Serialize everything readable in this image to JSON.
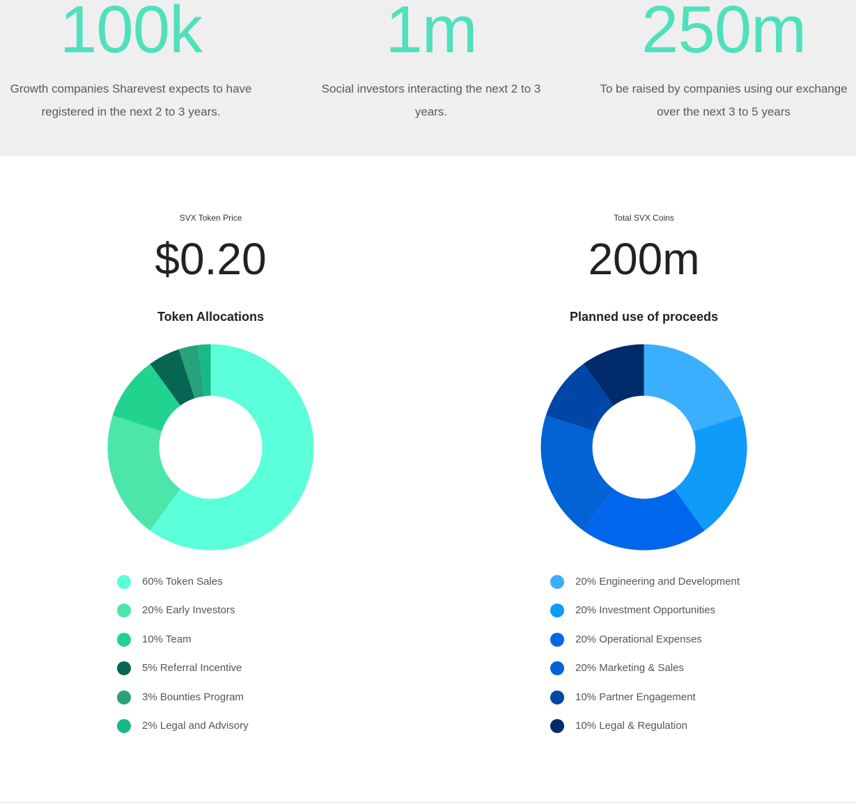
{
  "stats": [
    {
      "value": "100k",
      "desc_line1": "Growth companies Sharevest expects to have",
      "desc_line2": "registered in the next 2 to 3 years."
    },
    {
      "value": "1m",
      "desc_line1": "Social investors interacting the next 2 to 3",
      "desc_line2": "years."
    },
    {
      "value": "250m",
      "desc_line1": "To be raised by companies using our exchange",
      "desc_line2": "over the next 3 to 5 years"
    }
  ],
  "token_price": {
    "label": "SVX Token Price",
    "value": "$0.20"
  },
  "total_coins": {
    "label": "Total SVX Coins",
    "value": "200m"
  },
  "chart_data": [
    {
      "type": "pie",
      "title": "Token Allocations",
      "categories": [
        "Token Sales",
        "Early Investors",
        "Team",
        "Referral Incentive",
        "Bounties Program",
        "Legal and Advisory"
      ],
      "values": [
        60,
        20,
        10,
        5,
        3,
        2
      ],
      "colors": [
        "#5bffd9",
        "#4ce6aa",
        "#22d28f",
        "#076653",
        "#27a27b",
        "#19b987"
      ],
      "legend_labels": [
        "60% Token Sales",
        "20% Early Investors",
        "10% Team",
        "5% Referral Incentive",
        "3% Bounties Program",
        "2% Legal and Advisory"
      ],
      "legend_position": "bottom"
    },
    {
      "type": "pie",
      "title": "Planned use of proceeds",
      "categories": [
        "Engineering and Development",
        "Investment Opportunities",
        "Operational Expenses",
        "Marketing & Sales",
        "Partner Engagement",
        "Legal & Regulation"
      ],
      "values": [
        20,
        20,
        20,
        20,
        10,
        10
      ],
      "colors": [
        "#3baefd",
        "#0f9bf8",
        "#0066ec",
        "#0163d4",
        "#0046a6",
        "#002b6b"
      ],
      "legend_labels": [
        "20% Engineering and Development",
        "20% Investment Opportunities",
        "20% Operational Expenses",
        "20% Marketing & Sales",
        "10% Partner Engagement",
        "10% Legal & Regulation"
      ],
      "legend_position": "bottom"
    }
  ]
}
